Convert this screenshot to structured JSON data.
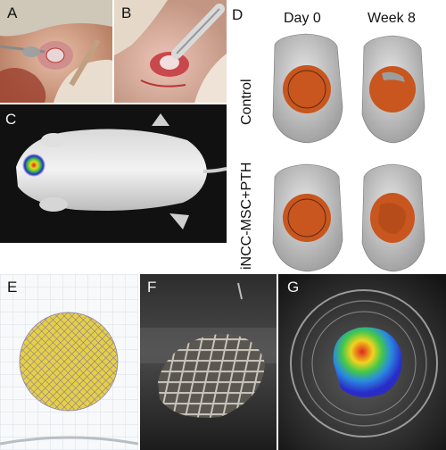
{
  "panels": {
    "a": {
      "label": "A"
    },
    "b": {
      "label": "B"
    },
    "c": {
      "label": "C"
    },
    "d": {
      "label": "D",
      "columns": [
        "Day 0",
        "Week 8"
      ],
      "rows": [
        "Control",
        "iNCC-MSC+PTH"
      ]
    },
    "e": {
      "label": "E"
    },
    "f": {
      "label": "F"
    },
    "g": {
      "label": "G"
    }
  },
  "colors": {
    "skull": "#c9c9c9",
    "defect": "#c8561e",
    "scaffold_fill": "#e4cf47",
    "scaffold_grid": "#7a6ca8",
    "heat_low": "#2a2cc8",
    "heat_high": "#e0261c"
  }
}
